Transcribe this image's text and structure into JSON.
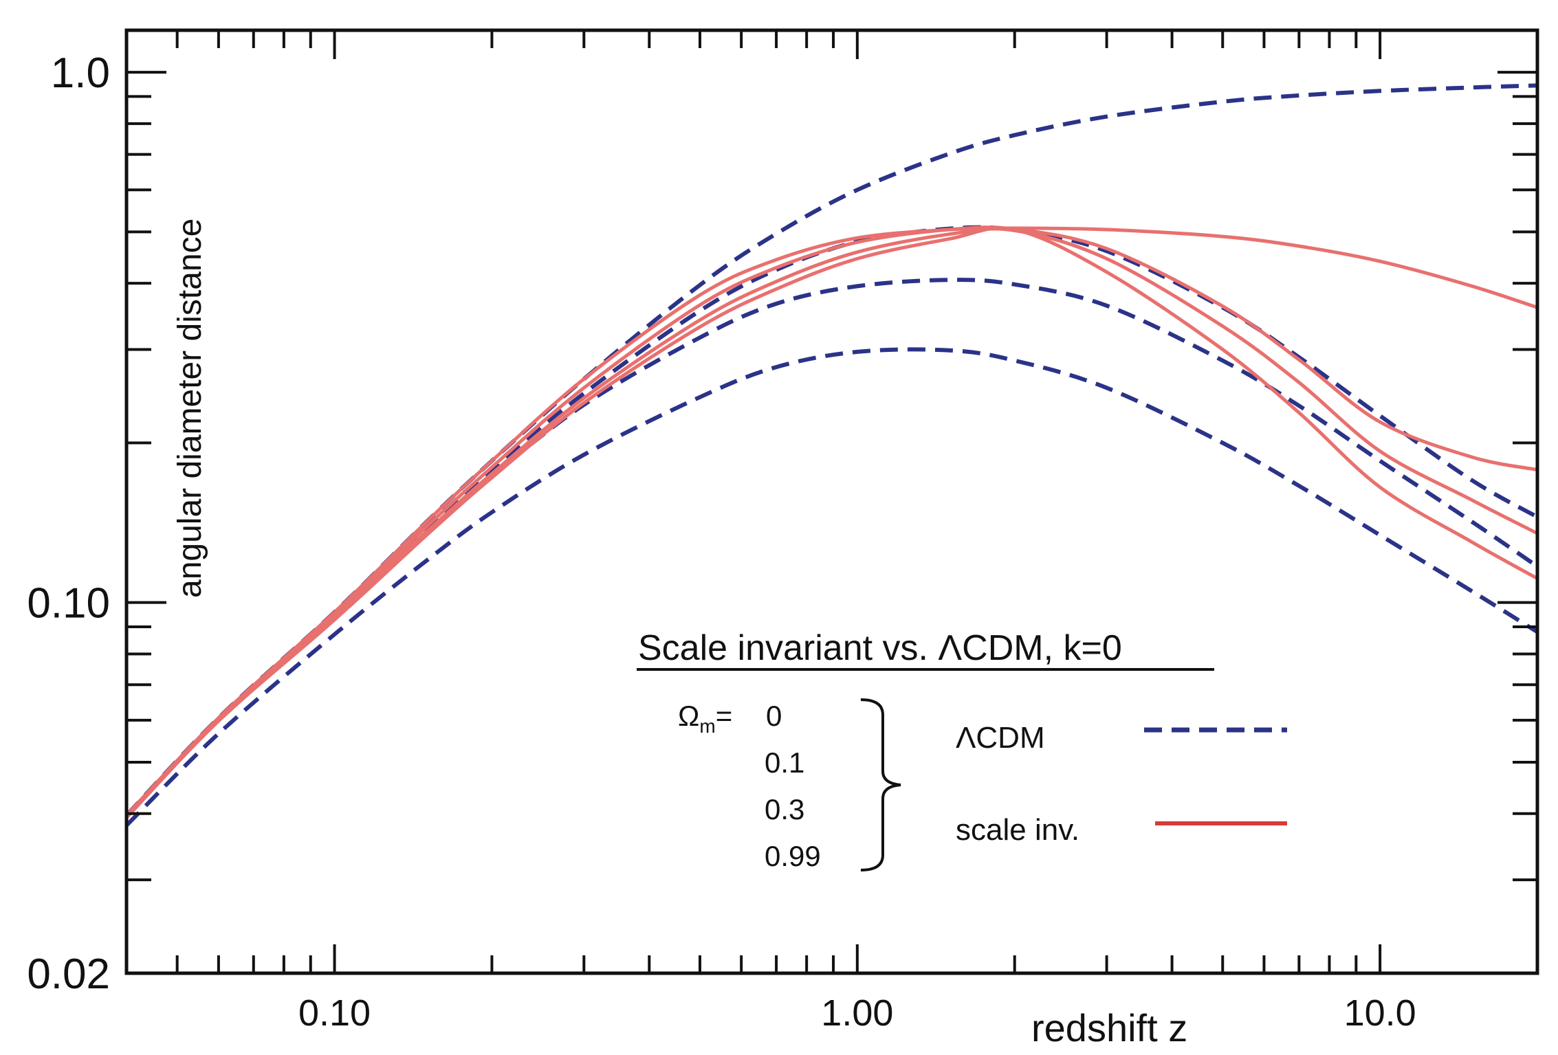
{
  "chart_data": {
    "type": "line",
    "xscale": "log",
    "yscale": "log",
    "xlim": [
      0.04,
      20
    ],
    "ylim": [
      0.02,
      1.2
    ],
    "xlabel": "redshift  z",
    "ylabel": "angular diameter distance",
    "x_tick_labels": [
      {
        "value": 0.1,
        "label": "0.10"
      },
      {
        "value": 1.0,
        "label": "1.00"
      },
      {
        "value": 10.0,
        "label": "10.0"
      }
    ],
    "y_tick_labels": [
      {
        "value": 0.02,
        "label": "0.02"
      },
      {
        "value": 0.1,
        "label": "0.10"
      },
      {
        "value": 1.0,
        "label": "1.0"
      }
    ],
    "minor_y_ticks": [
      0.03,
      0.04,
      0.05,
      0.06,
      0.07,
      0.08,
      0.09,
      0.2,
      0.3,
      0.4,
      0.5,
      0.6,
      0.7,
      0.8,
      0.9
    ],
    "minor_x_ticks": [
      0.05,
      0.06,
      0.07,
      0.08,
      0.09,
      0.2,
      0.3,
      0.4,
      0.5,
      0.6,
      0.7,
      0.8,
      0.9,
      2,
      3,
      4,
      5,
      6,
      7,
      8,
      9,
      20
    ],
    "x_samples": [
      0.04,
      0.06,
      0.1,
      0.15,
      0.2,
      0.3,
      0.5,
      0.7,
      1.0,
      1.5,
      2.0,
      3.0,
      5.0,
      7.0,
      10.0,
      15.0,
      20.0
    ],
    "series": [
      {
        "name": "ΛCDM Ωm=0",
        "style": "dashed",
        "color": "#2b3388",
        "values": [
          0.0397,
          0.0606,
          0.0959,
          0.142,
          0.185,
          0.264,
          0.397,
          0.496,
          0.6,
          0.702,
          0.761,
          0.825,
          0.88,
          0.904,
          0.922,
          0.936,
          0.944
        ]
      },
      {
        "name": "ΛCDM Ωm=0.1",
        "style": "dashed",
        "color": "#2b3388",
        "values": [
          0.0396,
          0.0603,
          0.0949,
          0.138,
          0.178,
          0.248,
          0.355,
          0.424,
          0.479,
          0.507,
          0.504,
          0.46,
          0.36,
          0.29,
          0.225,
          0.17,
          0.145
        ]
      },
      {
        "name": "ΛCDM Ωm=0.3",
        "style": "dashed",
        "color": "#2b3388",
        "values": [
          0.0394,
          0.06,
          0.0932,
          0.135,
          0.173,
          0.236,
          0.316,
          0.366,
          0.395,
          0.406,
          0.398,
          0.363,
          0.286,
          0.235,
          0.185,
          0.142,
          0.117
        ]
      },
      {
        "name": "ΛCDM Ωm=0.99",
        "style": "dashed",
        "color": "#2b3388",
        "values": [
          0.038,
          0.0566,
          0.0871,
          0.12,
          0.148,
          0.19,
          0.244,
          0.278,
          0.297,
          0.299,
          0.286,
          0.254,
          0.2,
          0.166,
          0.134,
          0.105,
          0.088
        ]
      },
      {
        "name": "scale inv. Ωm=0",
        "style": "solid",
        "color": "#e8706e",
        "values": [
          0.0397,
          0.0606,
          0.0959,
          0.142,
          0.185,
          0.264,
          0.38,
          0.443,
          0.487,
          0.505,
          0.508,
          0.505,
          0.49,
          0.47,
          0.44,
          0.395,
          0.36
        ]
      },
      {
        "name": "scale inv. Ωm=0.1",
        "style": "solid",
        "color": "#e8706e",
        "values": [
          0.0395,
          0.0602,
          0.0948,
          0.139,
          0.18,
          0.254,
          0.364,
          0.428,
          0.478,
          0.505,
          0.506,
          0.465,
          0.362,
          0.287,
          0.219,
          0.188,
          0.178
        ]
      },
      {
        "name": "scale inv. Ωm=0.3",
        "style": "solid",
        "color": "#e8706e",
        "values": [
          0.0394,
          0.06,
          0.0938,
          0.136,
          0.175,
          0.243,
          0.341,
          0.403,
          0.458,
          0.495,
          0.503,
          0.445,
          0.332,
          0.26,
          0.193,
          0.156,
          0.135
        ]
      },
      {
        "name": "scale inv. Ωm=0.99",
        "style": "solid",
        "color": "#e8706e",
        "values": [
          0.0393,
          0.0598,
          0.0928,
          0.134,
          0.172,
          0.238,
          0.331,
          0.39,
          0.445,
          0.485,
          0.505,
          0.42,
          0.3,
          0.228,
          0.165,
          0.13,
          0.111
        ]
      }
    ],
    "legend": {
      "title": "Scale invariant vs.  ΛCDM, k=0",
      "omega_label": "Ω",
      "omega_sub": "m",
      "omega_eq": "=",
      "omega_values": [
        "0",
        "0.1",
        "0.3",
        "0.99"
      ],
      "lcdm_label": "ΛCDM",
      "scaleinv_label": "scale  inv.",
      "lcdm_color": "#2b3388",
      "scaleinv_color": "#d83a3a"
    }
  }
}
